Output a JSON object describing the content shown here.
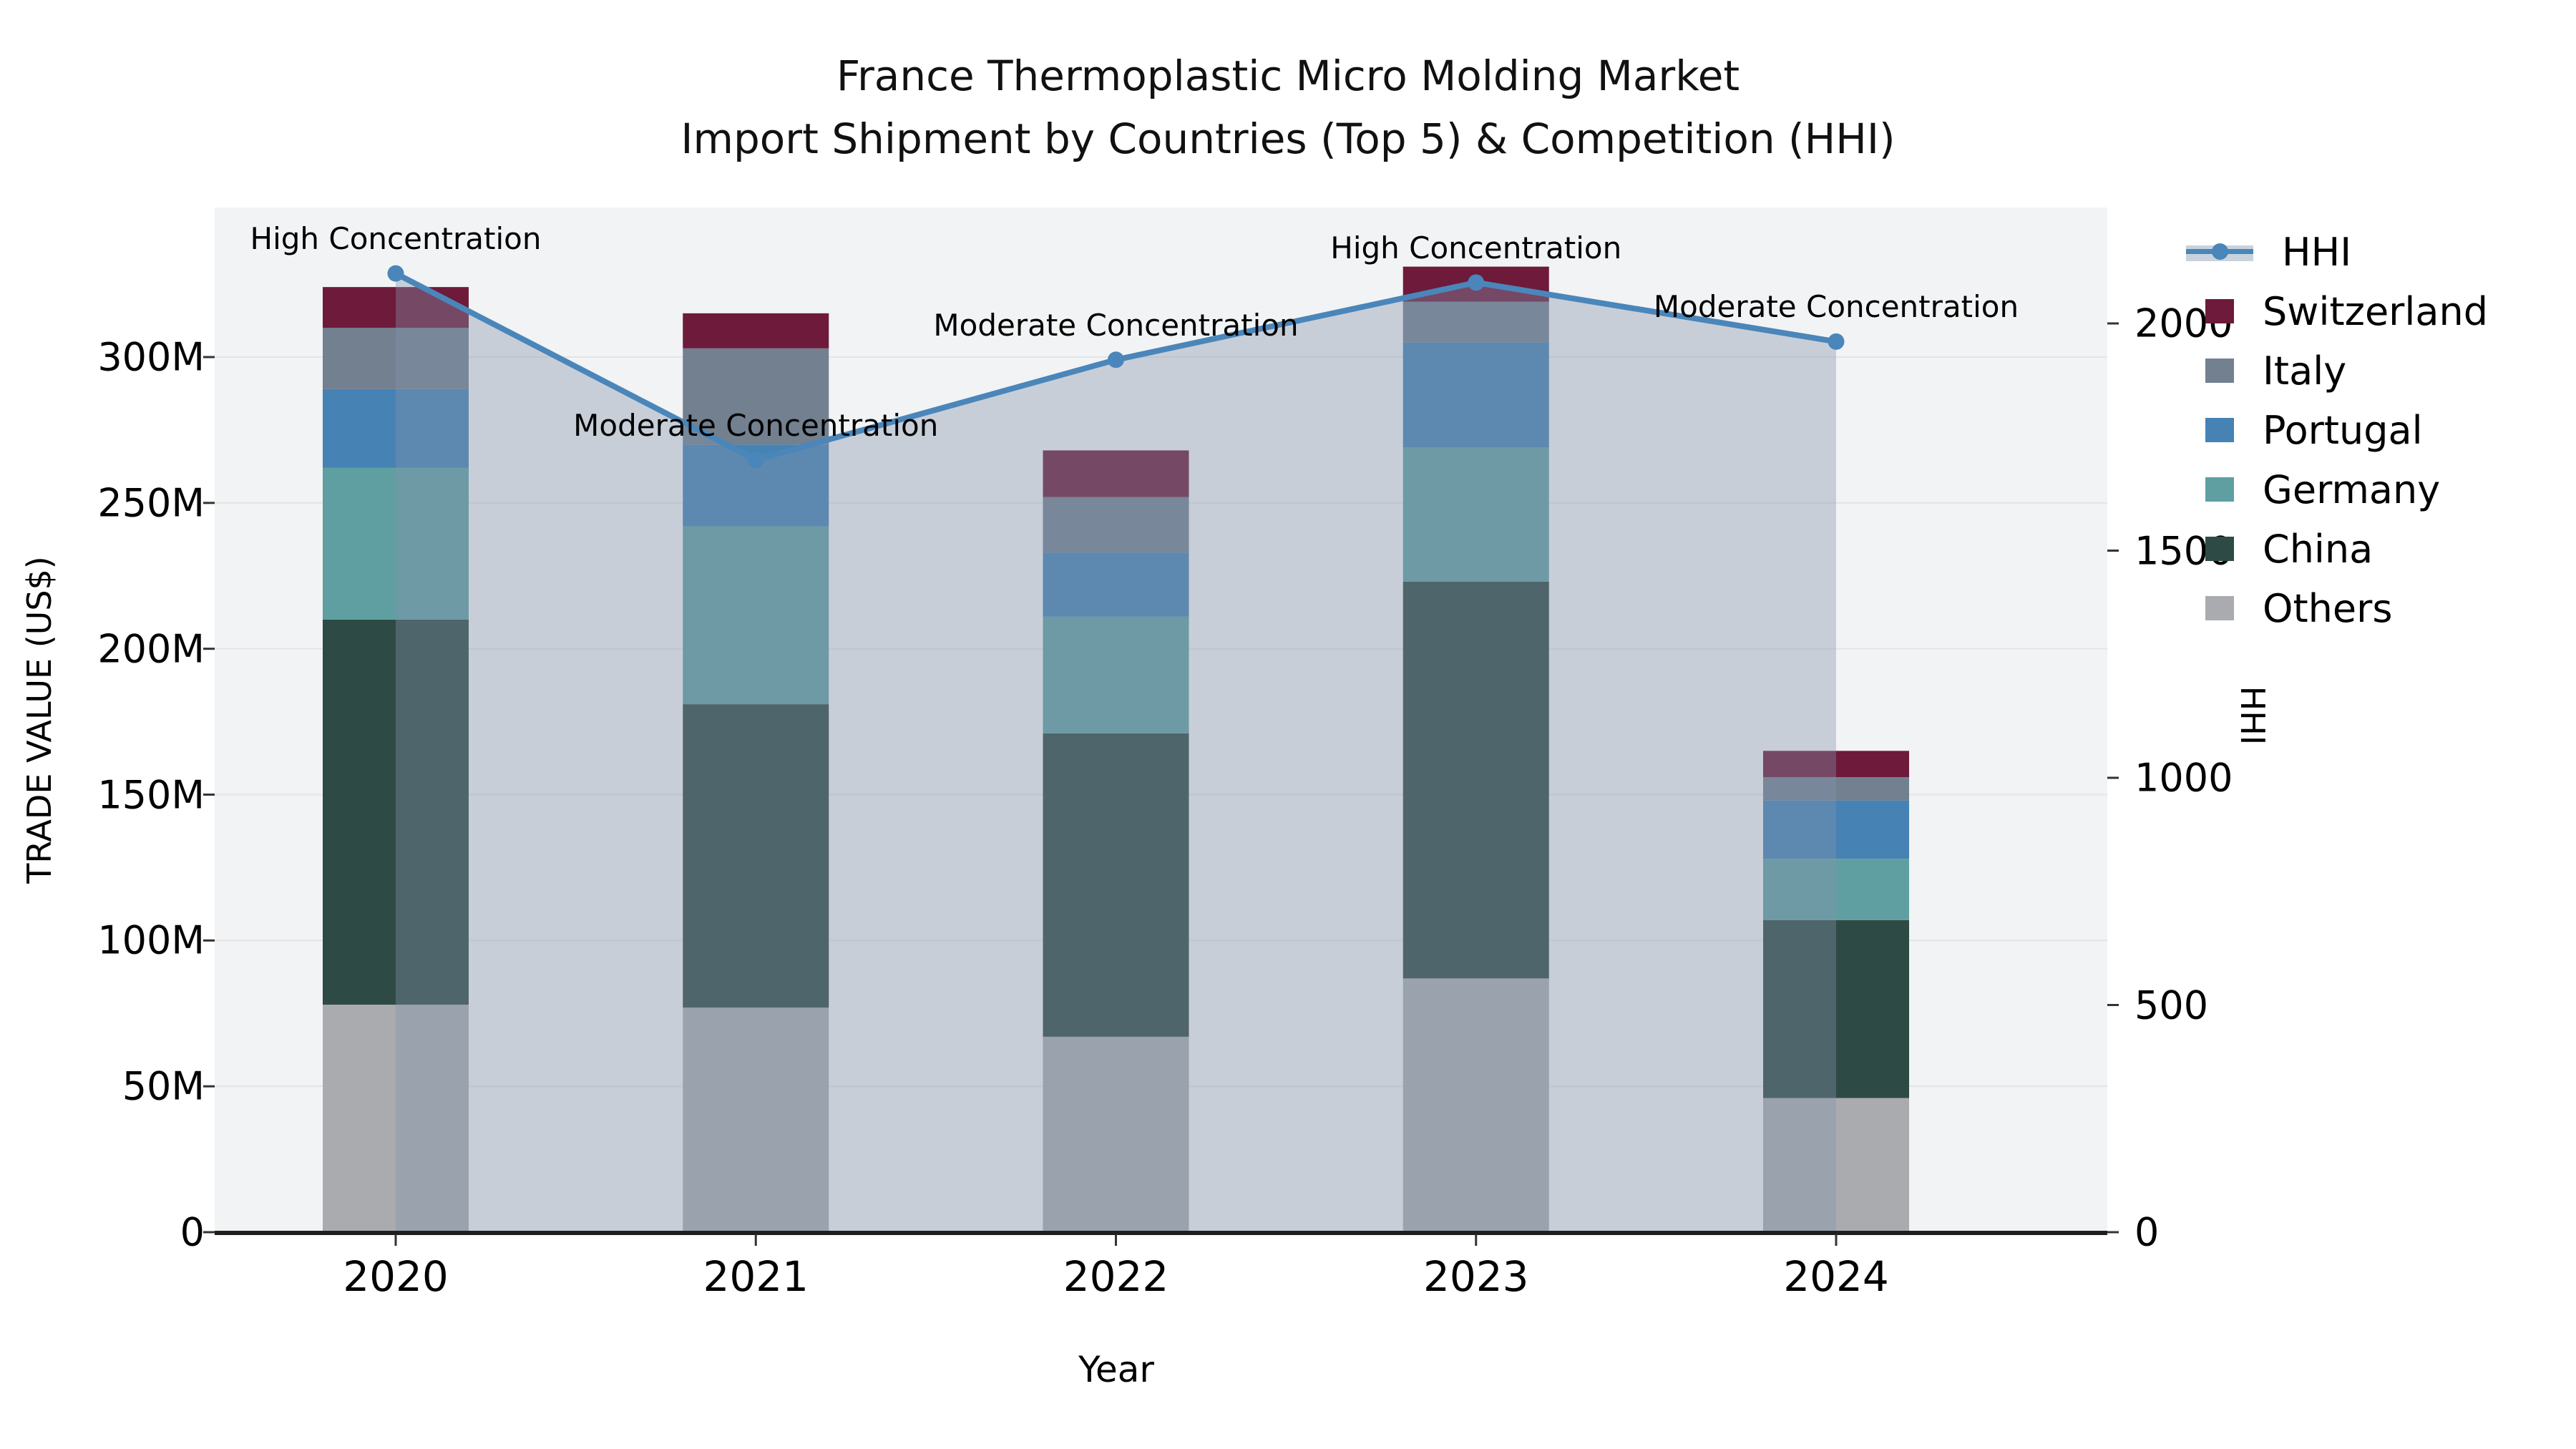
{
  "title": {
    "line1": "France Thermoplastic Micro Molding Market",
    "line2": "Import Shipment by Countries (Top 5) & Competition (HHI)"
  },
  "axes": {
    "left": {
      "title": "TRADE VALUE (US$)",
      "tick_labels": [
        "0",
        "50M",
        "100M",
        "150M",
        "200M",
        "250M",
        "300M"
      ],
      "tick_values": [
        0,
        50,
        100,
        150,
        200,
        250,
        300
      ],
      "unit": "M US$"
    },
    "right": {
      "title": "HHI",
      "tick_labels": [
        "0",
        "500",
        "1000",
        "1500",
        "2000"
      ],
      "tick_values": [
        0,
        500,
        1000,
        1500,
        2000
      ]
    },
    "x": {
      "title": "Year"
    }
  },
  "legend": [
    {
      "label": "HHI",
      "type": "line",
      "color": "#4a86ba",
      "band": "#c9d2dc"
    },
    {
      "label": "Switzerland",
      "type": "swatch",
      "color": "#6d1a3b"
    },
    {
      "label": "Italy",
      "type": "swatch",
      "color": "#72808f"
    },
    {
      "label": "Portugal",
      "type": "swatch",
      "color": "#4682b4"
    },
    {
      "label": "Germany",
      "type": "swatch",
      "color": "#5f9fa1"
    },
    {
      "label": "China",
      "type": "swatch",
      "color": "#2e4a44"
    },
    {
      "label": "Others",
      "type": "swatch",
      "color": "#a9abae"
    }
  ],
  "chart_data": {
    "type": "bar+line combo (stacked bars left axis, HHI line right axis)",
    "title": "France Thermoplastic Micro Molding Market — Import Shipment by Countries (Top 5) & Competition (HHI)",
    "categories": [
      "2020",
      "2021",
      "2022",
      "2023",
      "2024"
    ],
    "bar_value_unit": "millions US$",
    "series": [
      {
        "name": "Others",
        "color": "#a9abae",
        "values": [
          78,
          77,
          67,
          87,
          46
        ]
      },
      {
        "name": "China",
        "color": "#2e4a44",
        "values": [
          132,
          104,
          104,
          136,
          61
        ]
      },
      {
        "name": "Germany",
        "color": "#5f9fa1",
        "values": [
          52,
          61,
          40,
          46,
          21
        ]
      },
      {
        "name": "Portugal",
        "color": "#4682b4",
        "values": [
          27,
          28,
          22,
          36,
          20
        ]
      },
      {
        "name": "Italy",
        "color": "#72808f",
        "values": [
          21,
          33,
          19,
          14,
          8
        ]
      },
      {
        "name": "Switzerland",
        "color": "#6d1a3b",
        "values": [
          14,
          12,
          16,
          12,
          9
        ]
      }
    ],
    "bar_totals": [
      324,
      315,
      268,
      331,
      165
    ],
    "line": {
      "name": "HHI",
      "color": "#4a86ba",
      "area_fill": "rgba(132,148,170,0.38)",
      "values": [
        2110,
        1700,
        1920,
        2090,
        1960
      ]
    },
    "annotations": [
      {
        "category": "2020",
        "text": "High Concentration"
      },
      {
        "category": "2021",
        "text": "Moderate Concentration"
      },
      {
        "category": "2022",
        "text": "Moderate Concentration"
      },
      {
        "category": "2023",
        "text": "High Concentration"
      },
      {
        "category": "2024",
        "text": "Moderate Concentration"
      }
    ],
    "ylim_left_millions": [
      0,
      351
    ],
    "ylim_right_hhi": [
      0,
      2255
    ],
    "grid": "horizontal gridlines at left-axis ticks",
    "legend_position": "right side, outside plot",
    "xlabel": "Year",
    "ylabel_left": "TRADE VALUE (US$)",
    "ylabel_right": "HHI"
  }
}
